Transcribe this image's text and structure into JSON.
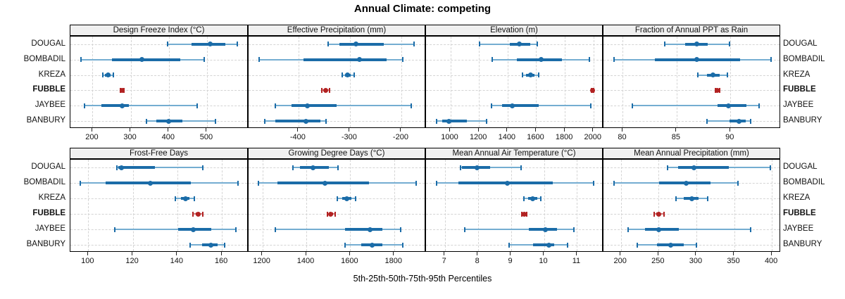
{
  "title": "Annual Climate: competing",
  "xlabel": "5th-25th-50th-75th-95th Percentiles",
  "sites": [
    "DOUGAL",
    "BOMBADIL",
    "KREZA",
    "FUBBLE",
    "JAYBEE",
    "BANBURY"
  ],
  "highlight_site": "FUBBLE",
  "colors": {
    "series_dark": "#1b6ca8",
    "series_light": "#74add1",
    "highlight_dark": "#b22222",
    "highlight_light": "#cc7a7a",
    "grid": "#d4d4d4",
    "strip_bg": "#f0f0f0",
    "panel_border": "#000000"
  },
  "chart_data": {
    "type": "dotplot",
    "subtype": "lattice-percentile-intervals",
    "percentiles": [
      5,
      25,
      50,
      75,
      95
    ],
    "grid": "dashed both axes",
    "panels": [
      {
        "title": "Design Freeze Index (°C)",
        "row": 0,
        "col": 0,
        "xlim": [
          142,
          609
        ],
        "ticks": [
          200,
          300,
          400,
          500
        ],
        "values": {
          "DOUGAL": [
            396,
            460,
            508,
            548,
            580
          ],
          "BOMBADIL": [
            170,
            250,
            330,
            430,
            493
          ],
          "KREZA": [
            226,
            233,
            240,
            248,
            255
          ],
          "FUBBLE": [
            273,
            276,
            278,
            280,
            283
          ],
          "JAYBEE": [
            178,
            224,
            278,
            296,
            475
          ],
          "BANBURY": [
            342,
            368,
            400,
            435,
            522
          ]
        }
      },
      {
        "title": "Effective Precipitation (mm)",
        "row": 0,
        "col": 1,
        "xlim": [
          -497,
          -152
        ],
        "ticks": [
          -400,
          -300,
          -200
        ],
        "values": {
          "DOUGAL": [
            -342,
            -320,
            -288,
            -234,
            -175
          ],
          "BOMBADIL": [
            -477,
            -390,
            -282,
            -229,
            -197
          ],
          "KREZA": [
            -315,
            -310,
            -304,
            -298,
            -292
          ],
          "FUBBLE": [
            -355,
            -350,
            -347,
            -344,
            -340
          ],
          "JAYBEE": [
            -445,
            -414,
            -383,
            -326,
            -181
          ],
          "BANBURY": [
            -466,
            -445,
            -385,
            -358,
            -347
          ]
        }
      },
      {
        "title": "Elevation (m)",
        "row": 0,
        "col": 2,
        "xlim": [
          830,
          2070
        ],
        "ticks": [
          1000,
          1200,
          1400,
          1600,
          1800,
          2000
        ],
        "values": {
          "DOUGAL": [
            1206,
            1416,
            1482,
            1560,
            1606
          ],
          "BOMBADIL": [
            1293,
            1466,
            1634,
            1782,
            1971
          ],
          "KREZA": [
            1505,
            1530,
            1560,
            1590,
            1615
          ],
          "FUBBLE": [
            1985,
            1988,
            1992,
            1996,
            2000
          ],
          "JAYBEE": [
            1288,
            1362,
            1433,
            1617,
            1982
          ],
          "BANBURY": [
            905,
            942,
            992,
            1115,
            1255
          ]
        }
      },
      {
        "title": "Fraction of Annual PPT as Rain",
        "row": 0,
        "col": 3,
        "xlim": [
          78.2,
          94.7
        ],
        "ticks": [
          80,
          85,
          90
        ],
        "values": {
          "DOUGAL": [
            83.9,
            85.8,
            86.9,
            87.9,
            89.9
          ],
          "BOMBADIL": [
            79.2,
            83.0,
            86.9,
            90.9,
            93.8
          ],
          "KREZA": [
            87.0,
            87.8,
            88.4,
            89.0,
            89.7
          ],
          "FUBBLE": [
            88.6,
            88.7,
            88.8,
            88.9,
            89.0
          ],
          "JAYBEE": [
            80.9,
            88.8,
            89.8,
            91.5,
            92.7
          ],
          "BANBURY": [
            87.8,
            89.9,
            90.8,
            91.4,
            91.9
          ]
        }
      },
      {
        "title": "Frost-Free Days",
        "row": 1,
        "col": 0,
        "xlim": [
          92,
          172
        ],
        "ticks": [
          100,
          120,
          140,
          160
        ],
        "values": {
          "DOUGAL": [
            112.8,
            113.5,
            115.0,
            130.0,
            151.6
          ],
          "BOMBADIL": [
            96.3,
            107.8,
            128.0,
            146.0,
            167.2
          ],
          "KREZA": [
            139.0,
            141.5,
            143.6,
            145.5,
            147.6
          ],
          "FUBBLE": [
            147.1,
            148.3,
            149.3,
            150.3,
            151.4
          ],
          "JAYBEE": [
            111.9,
            140.4,
            147.1,
            155.3,
            166.2
          ],
          "BANBURY": [
            145.7,
            151.0,
            155.0,
            158.0,
            161.2
          ]
        }
      },
      {
        "title": "Growing Degree Days (°C)",
        "row": 1,
        "col": 1,
        "xlim": [
          1137,
          1945
        ],
        "ticks": [
          1200,
          1400,
          1600,
          1800
        ],
        "values": {
          "DOUGAL": [
            1340,
            1372,
            1431,
            1501,
            1544
          ],
          "BOMBADIL": [
            1181,
            1270,
            1485,
            1684,
            1899
          ],
          "KREZA": [
            1542,
            1563,
            1584,
            1605,
            1625
          ],
          "FUBBLE": [
            1496,
            1504,
            1512,
            1521,
            1530
          ],
          "JAYBEE": [
            1259,
            1575,
            1691,
            1747,
            1828
          ],
          "BANBURY": [
            1575,
            1651,
            1699,
            1747,
            1839
          ]
        }
      },
      {
        "title": "Mean Annual Air Temperature (°C)",
        "row": 1,
        "col": 2,
        "xlim": [
          6.43,
          11.8
        ],
        "ticks": [
          7,
          8,
          9,
          10,
          11
        ],
        "values": {
          "DOUGAL": [
            7.47,
            7.52,
            7.97,
            8.38,
            9.31
          ],
          "BOMBADIL": [
            6.75,
            7.4,
            8.89,
            10.27,
            11.5
          ],
          "KREZA": [
            9.4,
            9.53,
            9.66,
            9.79,
            9.91
          ],
          "FUBBLE": [
            9.33,
            9.37,
            9.4,
            9.43,
            9.47
          ],
          "JAYBEE": [
            7.61,
            9.54,
            10.04,
            10.4,
            10.9
          ],
          "BANBURY": [
            8.94,
            9.66,
            10.14,
            10.31,
            10.72
          ]
        }
      },
      {
        "title": "Mean Annual Precipitation (mm)",
        "row": 1,
        "col": 3,
        "xlim": [
          177,
          412
        ],
        "ticks": [
          200,
          250,
          300,
          350,
          400
        ],
        "values": {
          "DOUGAL": [
            262,
            276,
            297,
            343,
            398
          ],
          "BOMBADIL": [
            191,
            251,
            287,
            319,
            355
          ],
          "KREZA": [
            273,
            283,
            294,
            303,
            315
          ],
          "FUBBLE": [
            244,
            247,
            250,
            253,
            257
          ],
          "JAYBEE": [
            210,
            232,
            250,
            277,
            372
          ],
          "BANBURY": [
            222,
            248,
            266,
            283,
            300
          ]
        }
      }
    ]
  }
}
